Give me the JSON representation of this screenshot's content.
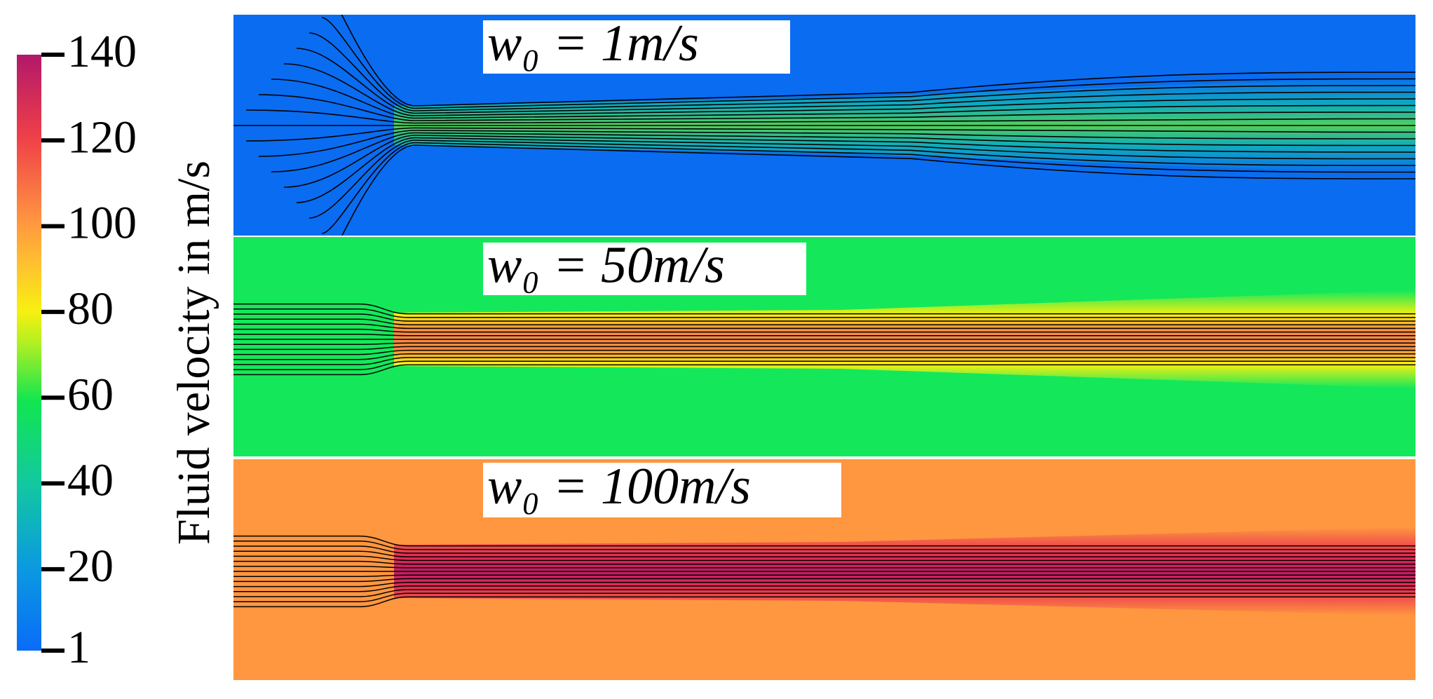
{
  "colorbar": {
    "label": "Fluid velocity in m/s",
    "range": [
      1,
      140
    ],
    "ticks": [
      1,
      20,
      40,
      60,
      80,
      100,
      120,
      140
    ]
  },
  "panels": [
    {
      "label": "w₀ = 1m/s"
    },
    {
      "label": "w₀ = 50m/s"
    },
    {
      "label": "w₀ = 100m/s"
    }
  ]
}
